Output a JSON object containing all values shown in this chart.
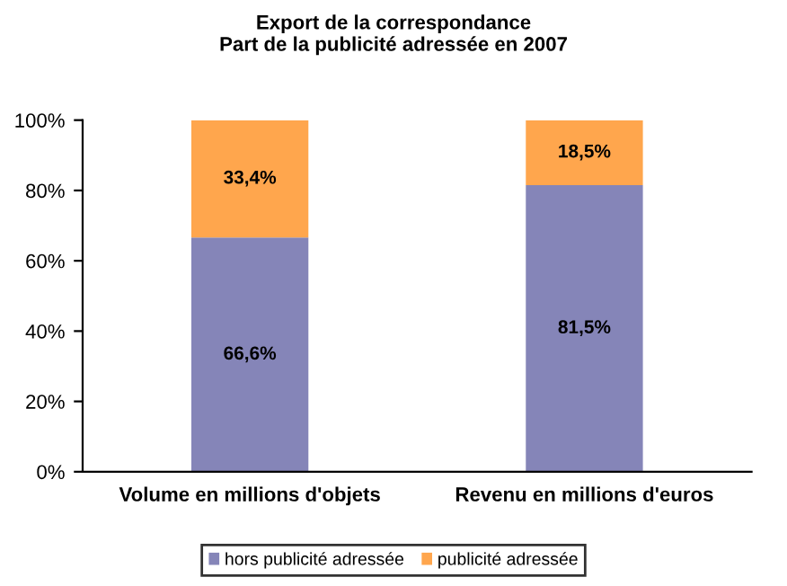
{
  "chart_data": {
    "type": "bar",
    "title": "Export de la correspondance",
    "subtitle": "Part de la publicité adressée en 2007",
    "categories": [
      "Volume en millions d'objets",
      "Revenu en millions d'euros"
    ],
    "stacked": true,
    "series": [
      {
        "name": "hors publicité adressée",
        "color": "#8585b8",
        "values": [
          66.6,
          81.5
        ],
        "value_labels": [
          "66,6%",
          "81,5%"
        ]
      },
      {
        "name": "publicité adressée",
        "color": "#ffa64d",
        "values": [
          33.4,
          18.5
        ],
        "value_labels": [
          "33,4%",
          "18,5%"
        ]
      }
    ],
    "ylim": [
      0,
      100
    ],
    "yticks": [
      {
        "value": 0,
        "label": "0%"
      },
      {
        "value": 20,
        "label": "20%"
      },
      {
        "value": 40,
        "label": "40%"
      },
      {
        "value": 60,
        "label": "60%"
      },
      {
        "value": 80,
        "label": "80%"
      },
      {
        "value": 100,
        "label": "100%"
      }
    ],
    "grid": false,
    "legend": "bottom"
  }
}
